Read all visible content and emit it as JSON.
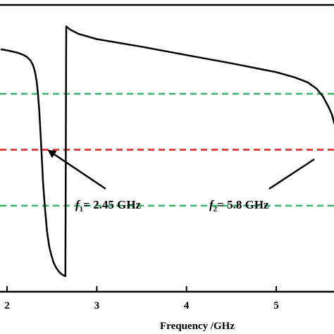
{
  "chart_data": {
    "type": "line",
    "title": "",
    "xlabel": "Frequency /GHz",
    "ylabel": "",
    "xlim": [
      1.93,
      5.65
    ],
    "ylim": [
      0,
      1
    ],
    "x_ticks": [
      "2",
      "3",
      "4",
      "5"
    ],
    "x_tick_values": [
      2,
      3,
      4,
      5
    ],
    "grid": false,
    "series": [
      {
        "x": [
          1.93,
          1.98,
          2.05,
          2.12,
          2.18,
          2.22,
          2.26,
          2.29,
          2.31,
          2.33,
          2.345,
          2.36,
          2.375,
          2.39,
          2.4,
          2.42,
          2.445,
          2.47,
          2.49,
          2.52,
          2.55,
          2.58,
          2.61,
          2.635,
          2.65,
          2.66,
          2.7,
          2.8,
          3.0,
          3.5,
          4.0,
          4.5,
          5.0,
          5.2,
          5.35,
          5.45,
          5.52,
          5.58,
          5.62,
          5.65
        ],
        "y": [
          0.895,
          0.892,
          0.887,
          0.881,
          0.873,
          0.865,
          0.852,
          0.832,
          0.808,
          0.77,
          0.72,
          0.65,
          0.55,
          0.45,
          0.38,
          0.28,
          0.18,
          0.12,
          0.09,
          0.055,
          0.035,
          0.02,
          0.01,
          0.005,
          0.003,
          0.985,
          0.973,
          0.955,
          0.935,
          0.905,
          0.872,
          0.84,
          0.805,
          0.785,
          0.765,
          0.74,
          0.71,
          0.67,
          0.64,
          0.6
        ],
        "color": "#000000"
      }
    ],
    "reference_lines": [
      {
        "y": 0.72,
        "color": "#3cb371",
        "style": "dashed"
      },
      {
        "y": 0.5,
        "color": "#dd2222",
        "style": "dashed"
      },
      {
        "y": 0.28,
        "color": "#3cb371",
        "style": "dashed"
      }
    ],
    "annotations": [
      {
        "var": "f",
        "sub": "1",
        "text": "= 2.45 GHz",
        "target_x": 2.45,
        "target_y": 0.5
      },
      {
        "var": "f",
        "sub": "2",
        "text": "= 5.8 GHz",
        "target_x": 5.65,
        "target_y": 0.5
      }
    ]
  }
}
